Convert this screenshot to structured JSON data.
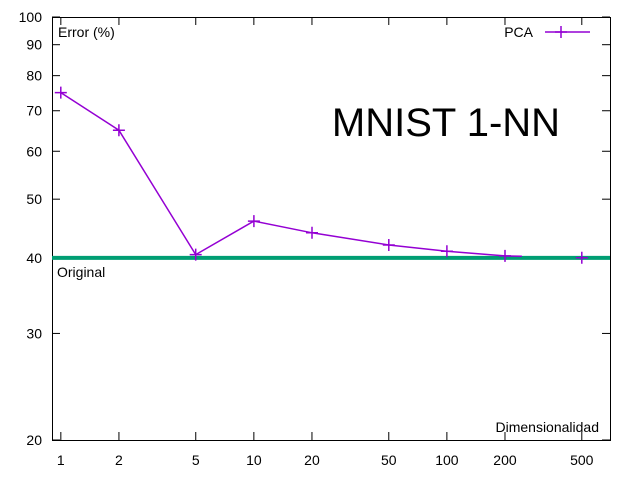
{
  "chart_data": {
    "type": "line",
    "title": "MNIST 1-NN",
    "xlabel": "Dimensionalidad",
    "ylabel": "Error (%)",
    "x_scale": "log",
    "y_scale": "log",
    "xlim": [
      0.9,
      700
    ],
    "ylim": [
      20,
      100
    ],
    "x_ticks": [
      1,
      2,
      5,
      10,
      20,
      50,
      100,
      200,
      500
    ],
    "y_ticks": [
      20,
      30,
      40,
      50,
      60,
      70,
      80,
      90,
      100
    ],
    "grid": false,
    "legend_position": "top-right",
    "series": [
      {
        "name": "PCA",
        "color": "#9400d3",
        "marker": "plus",
        "x": [
          1,
          2,
          5,
          10,
          20,
          50,
          100,
          200,
          500
        ],
        "y": [
          75,
          65,
          40.5,
          46,
          44,
          42,
          41,
          40.3,
          40
        ]
      }
    ],
    "reference_line": {
      "label": "Original",
      "y": 40,
      "color": "#009e73"
    }
  }
}
